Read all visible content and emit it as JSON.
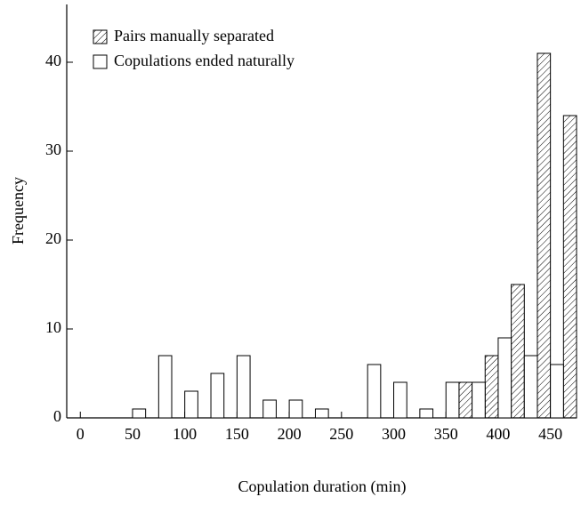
{
  "chart_data": {
    "type": "bar",
    "xlabel": "Copulation duration (min)",
    "ylabel": "Frequency",
    "x": [
      50,
      75,
      100,
      125,
      150,
      175,
      200,
      225,
      250,
      275,
      300,
      325,
      350,
      375,
      400,
      425,
      450,
      475
    ],
    "series": [
      {
        "name": "Pairs manually separated",
        "color": "#000000",
        "pattern": "hatch",
        "values": [
          null,
          null,
          null,
          null,
          null,
          null,
          null,
          null,
          null,
          null,
          null,
          null,
          null,
          4,
          7,
          15,
          41,
          34
        ]
      },
      {
        "name": "Copulations ended naturally",
        "color": "#000000",
        "pattern": "none",
        "values": [
          1,
          7,
          3,
          5,
          7,
          2,
          2,
          1,
          0,
          6,
          4,
          1,
          4,
          4,
          9,
          7,
          6,
          null
        ]
      }
    ],
    "xlim": [
      -13,
      475
    ],
    "xticks": [
      0,
      50,
      100,
      150,
      200,
      250,
      300,
      350,
      400,
      450
    ],
    "ylim": [
      0,
      46.5
    ],
    "yticks": [
      0,
      10,
      20,
      30,
      40
    ],
    "legend": "upper left",
    "grid": false
  }
}
